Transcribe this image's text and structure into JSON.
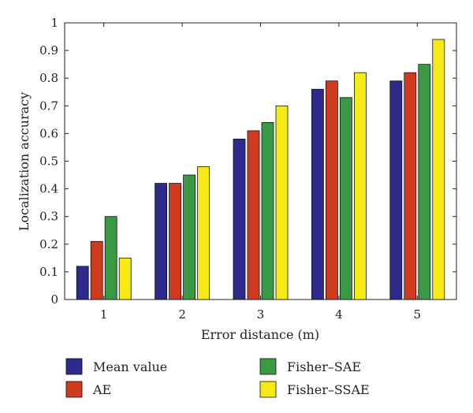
{
  "chart_data": {
    "type": "bar",
    "categories": [
      "1",
      "2",
      "3",
      "4",
      "5"
    ],
    "series": [
      {
        "name": "Mean value",
        "color": "#2e2a8c",
        "values": [
          0.12,
          0.42,
          0.58,
          0.76,
          0.79
        ]
      },
      {
        "name": "AE",
        "color": "#d03a1e",
        "values": [
          0.21,
          0.42,
          0.61,
          0.79,
          0.82
        ]
      },
      {
        "name": "Fisher–SAE",
        "color": "#3a9a44",
        "values": [
          0.3,
          0.45,
          0.64,
          0.73,
          0.85
        ]
      },
      {
        "name": "Fisher–SSAE",
        "color": "#f5ea14",
        "values": [
          0.15,
          0.48,
          0.7,
          0.82,
          0.94
        ]
      }
    ],
    "xlabel": "Error distance (m)",
    "ylabel": "Localization accuracy",
    "ylim": [
      0,
      1
    ],
    "yticks": [
      "0",
      "0.1",
      "0.2",
      "0.3",
      "0.4",
      "0.5",
      "0.6",
      "0.7",
      "0.8",
      "0.9",
      "1"
    ],
    "grid": false,
    "legend_position": "bottom"
  }
}
